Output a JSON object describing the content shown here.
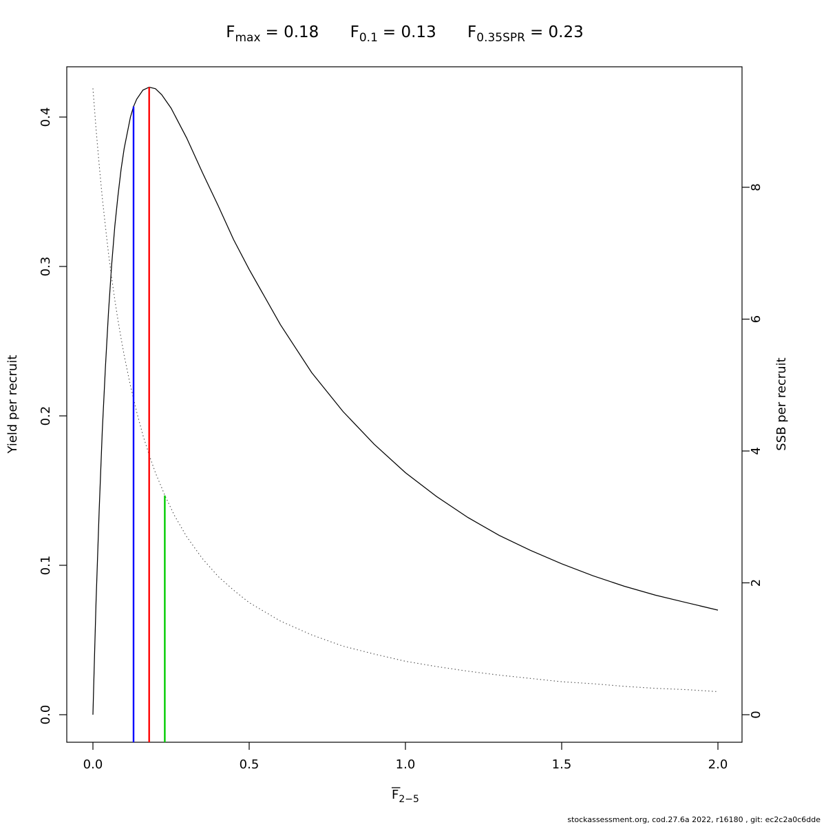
{
  "title": {
    "terms": [
      {
        "base": "F",
        "sub": "max",
        "eq": "= 0.18"
      },
      {
        "base": "F",
        "sub": "0.1",
        "eq": "= 0.13"
      },
      {
        "base": "F",
        "sub": "0.35SPR",
        "eq": "= 0.23"
      }
    ]
  },
  "footer": "stockassessment.org, cod.27.6a 2022, r16180 , git: ec2c2a0c6dde",
  "chart_data": {
    "type": "line",
    "title": "Fmax = 0.18, F0.1 = 0.13, F0.35SPR = 0.23",
    "grid": false,
    "legend": "none",
    "x_axis": {
      "label_base": "F",
      "label_sub": "2−5",
      "range": [
        0,
        2
      ],
      "ticks": [
        "0.0",
        "0.5",
        "1.0",
        "1.5",
        "2.0"
      ]
    },
    "y_axis_left": {
      "label": "Yield per recruit",
      "range": [
        0,
        0.433
      ],
      "ticks": [
        "0.0",
        "0.1",
        "0.2",
        "0.3",
        "0.4"
      ]
    },
    "y_axis_right": {
      "label": "SSB per recruit",
      "range": [
        0,
        9.83
      ],
      "ticks": [
        "0",
        "2",
        "4",
        "6",
        "8"
      ]
    },
    "reference_points": {
      "Fmax": 0.18,
      "F0.1": 0.13,
      "F0.35SPR": 0.23
    },
    "series": [
      {
        "name": "yield-per-recruit",
        "axis": "left",
        "line_style": "solid",
        "color": "#000000",
        "x": [
          0,
          0.005,
          0.01,
          0.02,
          0.03,
          0.04,
          0.05,
          0.06,
          0.07,
          0.08,
          0.09,
          0.1,
          0.12,
          0.13,
          0.14,
          0.16,
          0.18,
          0.2,
          0.22,
          0.25,
          0.3,
          0.35,
          0.4,
          0.45,
          0.5,
          0.6,
          0.7,
          0.8,
          0.9,
          1.0,
          1.1,
          1.2,
          1.3,
          1.4,
          1.5,
          1.6,
          1.7,
          1.8,
          1.9,
          2.0
        ],
        "y": [
          0,
          0.039,
          0.075,
          0.137,
          0.19,
          0.233,
          0.27,
          0.301,
          0.327,
          0.347,
          0.365,
          0.379,
          0.4,
          0.407,
          0.412,
          0.418,
          0.42,
          0.419,
          0.415,
          0.406,
          0.386,
          0.363,
          0.341,
          0.318,
          0.298,
          0.261,
          0.229,
          0.203,
          0.181,
          0.162,
          0.146,
          0.132,
          0.12,
          0.11,
          0.101,
          0.093,
          0.086,
          0.08,
          0.075,
          0.07
        ]
      },
      {
        "name": "ssb-per-recruit",
        "axis": "right",
        "line_style": "dotted",
        "color": "#404040",
        "x": [
          0,
          0.01,
          0.02,
          0.03,
          0.04,
          0.05,
          0.06,
          0.07,
          0.08,
          0.09,
          0.1,
          0.12,
          0.14,
          0.16,
          0.18,
          0.2,
          0.23,
          0.26,
          0.3,
          0.35,
          0.4,
          0.45,
          0.5,
          0.6,
          0.7,
          0.8,
          0.9,
          1.0,
          1.1,
          1.2,
          1.3,
          1.4,
          1.5,
          1.6,
          1.7,
          1.8,
          1.9,
          2.0
        ],
        "y": [
          9.5,
          8.89,
          8.34,
          7.84,
          7.4,
          6.99,
          6.63,
          6.29,
          5.99,
          5.71,
          5.45,
          4.99,
          4.59,
          4.24,
          3.94,
          3.67,
          3.33,
          3.03,
          2.7,
          2.37,
          2.1,
          1.89,
          1.7,
          1.42,
          1.21,
          1.04,
          0.92,
          0.81,
          0.73,
          0.66,
          0.6,
          0.55,
          0.5,
          0.47,
          0.43,
          0.4,
          0.38,
          0.35
        ]
      }
    ],
    "ref_lines": [
      {
        "name": "refline-f01",
        "x": 0.13,
        "y_top": 0.407,
        "axis": "left",
        "color": "#0000FF"
      },
      {
        "name": "refline-fmax",
        "x": 0.18,
        "y_top": 0.42,
        "axis": "left",
        "color": "#FF0000"
      },
      {
        "name": "refline-f035spr",
        "x": 0.23,
        "y_top": 3.325,
        "axis": "right",
        "color": "#00CC00"
      }
    ]
  }
}
